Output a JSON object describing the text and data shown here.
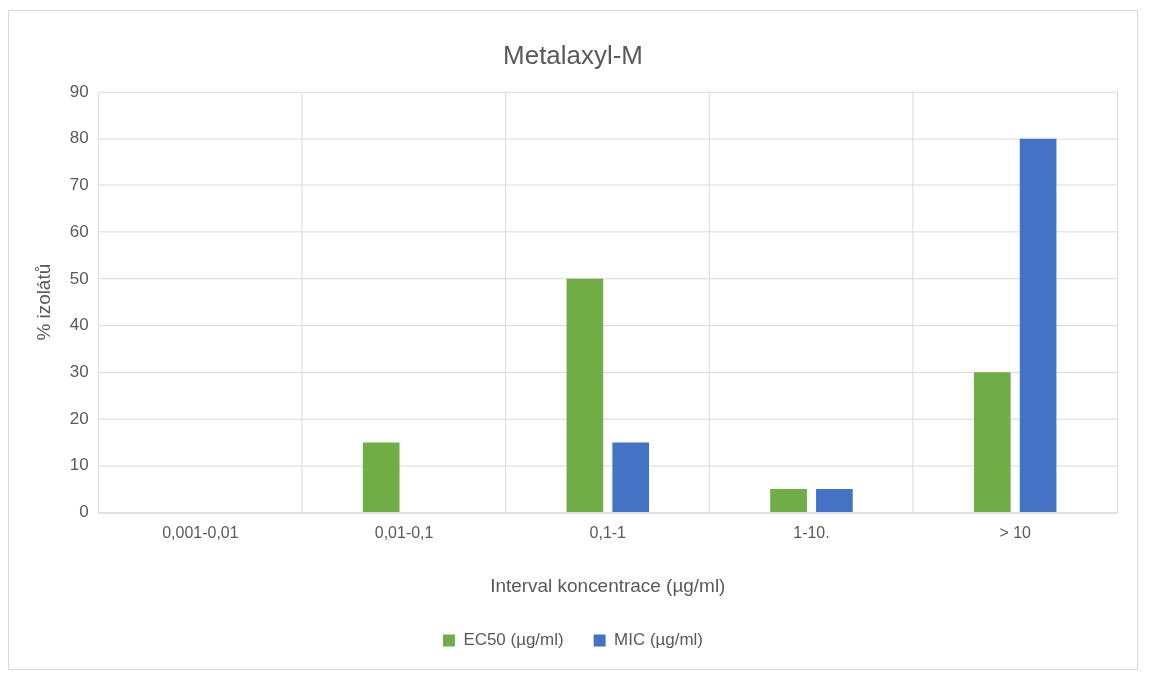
{
  "chart_data": {
    "type": "bar",
    "title": "Metalaxyl-M",
    "xlabel": "Interval koncentrace (µg/ml)",
    "ylabel": "% izolátů",
    "categories": [
      "0,001-0,01",
      "0,01-0,1",
      "0,1-1",
      "1-10.",
      "> 10"
    ],
    "series": [
      {
        "name": "EC50 (µg/ml)",
        "color": "#70ad47",
        "values": [
          0,
          15,
          50,
          5,
          30
        ]
      },
      {
        "name": "MIC (µg/ml)",
        "color": "#4472c4",
        "values": [
          0,
          0,
          15,
          5,
          80
        ]
      }
    ],
    "ylim": [
      0,
      90
    ],
    "yticks": [
      0,
      10,
      20,
      30,
      40,
      50,
      60,
      70,
      80,
      90
    ],
    "grid": true,
    "legend": "bottom"
  }
}
